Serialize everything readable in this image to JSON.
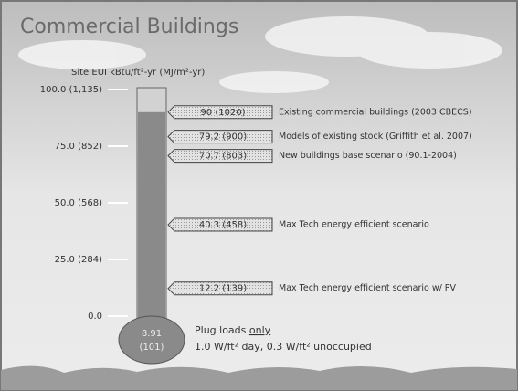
{
  "chart_data": {
    "type": "thermometer",
    "title": "Commercial Buildings",
    "y_label": "Site EUI kBtu/ft²-yr (MJ/m²-yr)",
    "ylim": [
      0,
      100
    ],
    "yticks": [
      {
        "value": 100,
        "label": "100.0 (1,135)"
      },
      {
        "value": 75,
        "label": "75.0 (852)"
      },
      {
        "value": 50,
        "label": "50.0 (568)"
      },
      {
        "value": 25,
        "label": "25.0 (284)"
      },
      {
        "value": 0,
        "label": "0.0"
      }
    ],
    "markers": [
      {
        "value": 90,
        "label": "90 (1020)",
        "text": "Existing commercial buildings (2003 CBECS)"
      },
      {
        "value": 79.2,
        "label": "79.2 (900)",
        "text": "Models of existing stock (Griffith et al. 2007)"
      },
      {
        "value": 70.7,
        "label": "70.7 (803)",
        "text": "New buildings base scenario (90.1-2004)"
      },
      {
        "value": 40.3,
        "label": "40.3 (458)",
        "text": "Max Tech energy efficient scenario"
      },
      {
        "value": 12.2,
        "label": "12.2 (139)",
        "text": "Max Tech energy efficient scenario w/ PV"
      }
    ],
    "bulb_label": [
      "8.91",
      "(101)"
    ],
    "annotation": {
      "line1": [
        "Plug loads ",
        "only"
      ],
      "line2": "1.0 W/ft² day, 0.3 W/ft² unoccupied"
    },
    "tube_color": "#d2d2d2",
    "fill_color": "#8a8a8a"
  }
}
